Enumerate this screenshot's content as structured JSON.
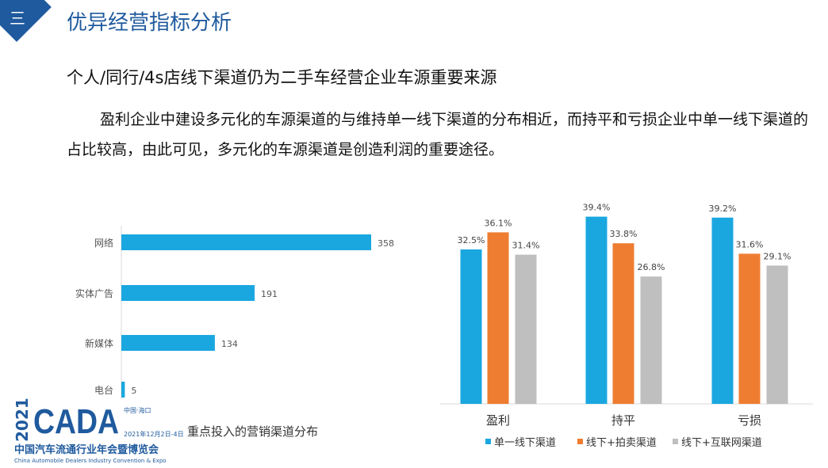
{
  "header": {
    "section_number": "三",
    "title": "优异经营指标分析"
  },
  "subtitle": "个人/同行/4s店线下渠道仍为二手车经营企业车源重要来源",
  "paragraph": "盈利企业中建设多元化的车源渠道的与维持单一线下渠道的分布相近，而持平和亏损企业中单一线下渠道的占比较高，由此可见，多元化的车源渠道是创造利润的重要途径。",
  "logo": {
    "year": "2021",
    "name": "CADA",
    "city": "中国·海口",
    "date": "2021年12月2日-4日",
    "cn": "中国汽车流通行业年会暨博览会",
    "en": "China Automobile Dealers Industry Convention & Expo"
  },
  "chart_data": [
    {
      "type": "bar",
      "orientation": "horizontal",
      "title": "重点投入的营销渠道分布",
      "categories": [
        "网络",
        "实体广告",
        "新媒体",
        "电台"
      ],
      "values": [
        358,
        191,
        134,
        5
      ],
      "color": "#1aa7e0"
    },
    {
      "type": "bar",
      "categories": [
        "盈利",
        "持平",
        "亏损"
      ],
      "series": [
        {
          "name": "单一线下渠道",
          "color": "#1aa7e0",
          "values": [
            32.5,
            39.4,
            39.2
          ]
        },
        {
          "name": "线下+拍卖渠道",
          "color": "#ef7d31",
          "values": [
            36.1,
            33.8,
            31.6
          ]
        },
        {
          "name": "线下+互联网渠道",
          "color": "#bfbfbf",
          "values": [
            31.4,
            26.8,
            29.1
          ]
        }
      ],
      "unit": "%",
      "legend": "bottom"
    }
  ]
}
